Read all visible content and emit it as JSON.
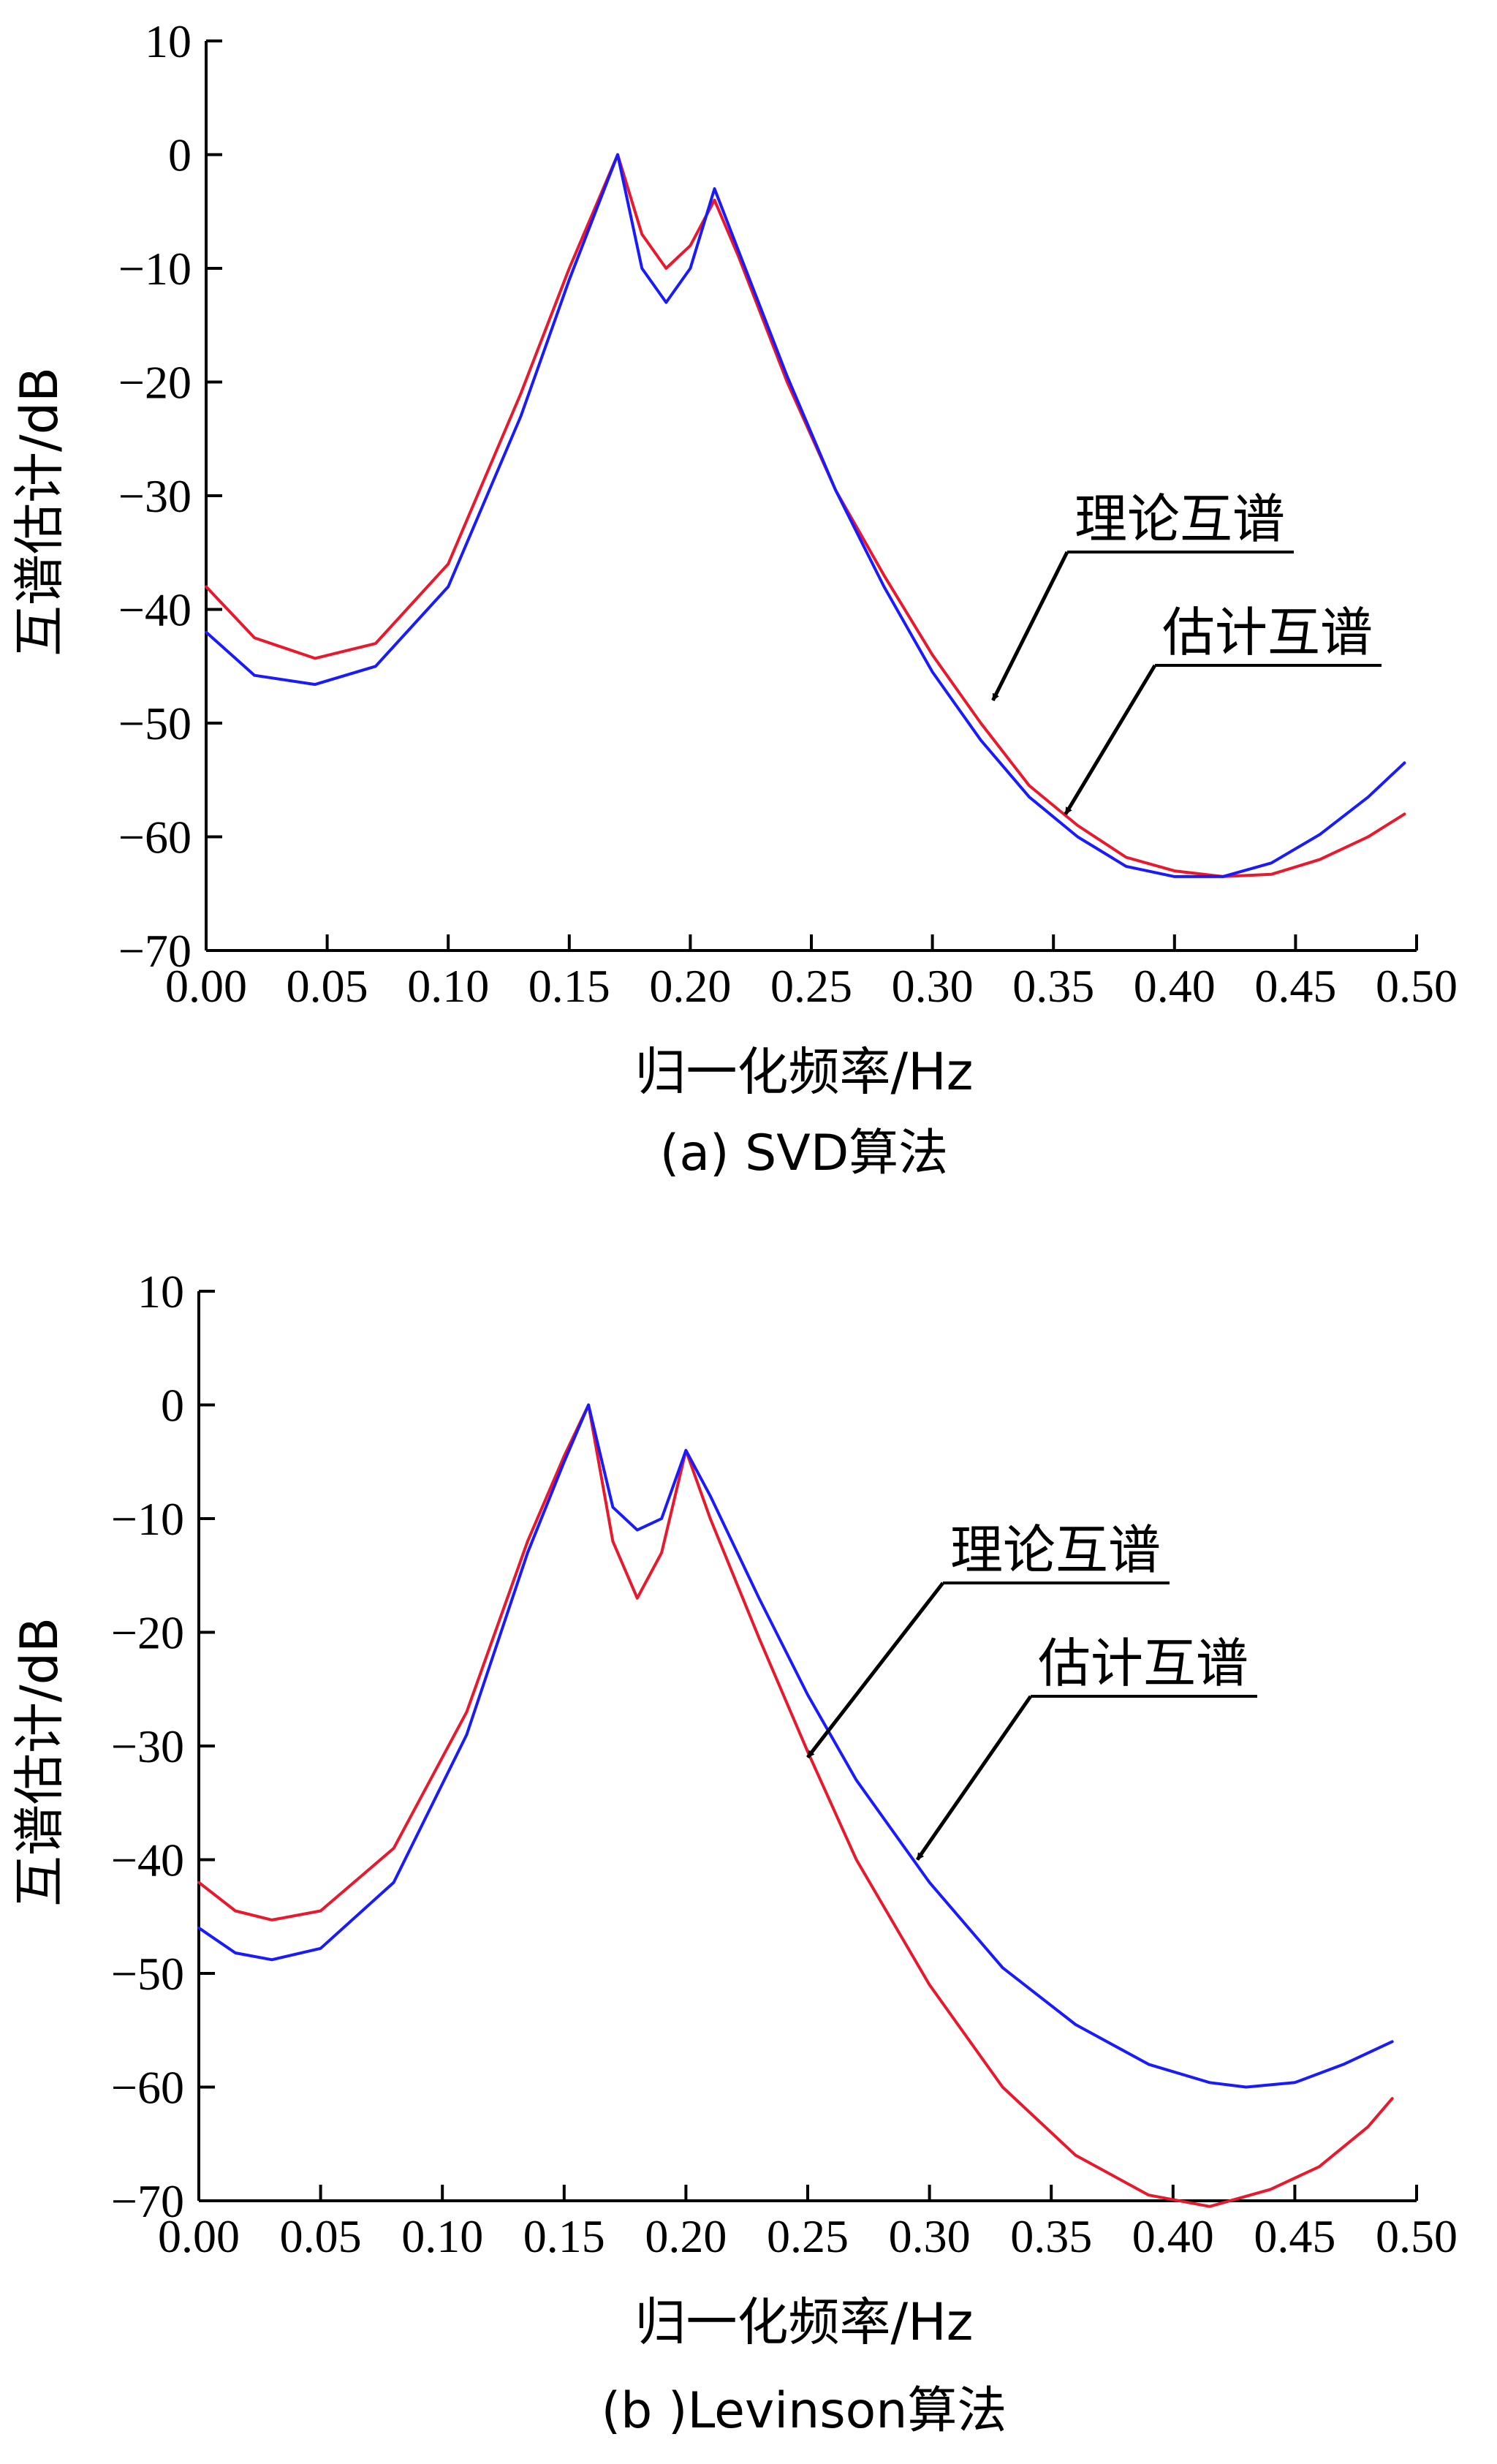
{
  "colors": {
    "theory": "#e8192c",
    "estimate": "#1a1aff",
    "axis": "#000000"
  },
  "chart_data": [
    {
      "type": "line",
      "caption": "(a) SVD算法",
      "xlabel": "归一化频率/Hz",
      "ylabel": "互谱估计/dB",
      "xlim": [
        0,
        0.5
      ],
      "ylim": [
        -70,
        10
      ],
      "xticks": [
        "0.00",
        "0.05",
        "0.10",
        "0.15",
        "0.20",
        "0.25",
        "0.30",
        "0.35",
        "0.40",
        "0.45",
        "0.50"
      ],
      "yticks": [
        "10",
        "0",
        "−10",
        "−20",
        "−30",
        "−40",
        "−50",
        "−60",
        "−70"
      ],
      "annotations": [
        {
          "text": "理论互谱",
          "target_series": "theory",
          "point": [
            0.325,
            -48
          ]
        },
        {
          "text": "估计互谱",
          "target_series": "estimate",
          "point": [
            0.355,
            -58
          ]
        }
      ],
      "series": [
        {
          "key": "theory",
          "color": "#e8192c",
          "x": [
            0.0,
            0.02,
            0.045,
            0.07,
            0.1,
            0.13,
            0.15,
            0.16,
            0.17,
            0.18,
            0.19,
            0.2,
            0.21,
            0.22,
            0.24,
            0.26,
            0.28,
            0.3,
            0.32,
            0.34,
            0.36,
            0.38,
            0.4,
            0.42,
            0.44,
            0.46,
            0.48,
            0.495
          ],
          "y": [
            -38,
            -42.5,
            -44.3,
            -43,
            -36,
            -21,
            -10,
            -5,
            0,
            -7,
            -10,
            -8,
            -4,
            -9,
            -20,
            -29.5,
            -37,
            -44,
            -50,
            -55.5,
            -59,
            -61.8,
            -63,
            -63.5,
            -63.3,
            -62,
            -60,
            -58
          ]
        },
        {
          "key": "estimate",
          "color": "#1a1aff",
          "x": [
            0.0,
            0.02,
            0.045,
            0.07,
            0.1,
            0.13,
            0.15,
            0.16,
            0.17,
            0.18,
            0.19,
            0.2,
            0.21,
            0.22,
            0.24,
            0.26,
            0.28,
            0.3,
            0.32,
            0.34,
            0.36,
            0.38,
            0.4,
            0.42,
            0.44,
            0.46,
            0.48,
            0.495
          ],
          "y": [
            -42,
            -45.8,
            -46.6,
            -45,
            -38,
            -23,
            -11,
            -5.5,
            0,
            -10,
            -13,
            -10,
            -3,
            -8.5,
            -19.5,
            -29.5,
            -38,
            -45.5,
            -51.5,
            -56.5,
            -60,
            -62.6,
            -63.5,
            -63.5,
            -62.3,
            -59.8,
            -56.5,
            -53.5
          ]
        }
      ]
    },
    {
      "type": "line",
      "caption": "(b )Levinson算法",
      "xlabel": "归一化频率/Hz",
      "ylabel": "互谱估计/dB",
      "xlim": [
        0,
        0.5
      ],
      "ylim": [
        -70,
        10
      ],
      "xticks": [
        "0.00",
        "0.05",
        "0.10",
        "0.15",
        "0.20",
        "0.25",
        "0.30",
        "0.35",
        "0.40",
        "0.45",
        "0.50"
      ],
      "yticks": [
        "10",
        "0",
        "−10",
        "−20",
        "−30",
        "−40",
        "−50",
        "−60",
        "−70"
      ],
      "annotations": [
        {
          "text": "理论互谱",
          "target_series": "theory",
          "point": [
            0.25,
            -31
          ]
        },
        {
          "text": "估计互谱",
          "target_series": "estimate",
          "point": [
            0.295,
            -40
          ]
        }
      ],
      "series": [
        {
          "key": "theory",
          "color": "#e8192c",
          "x": [
            0.0,
            0.015,
            0.03,
            0.05,
            0.08,
            0.11,
            0.135,
            0.15,
            0.16,
            0.17,
            0.18,
            0.19,
            0.2,
            0.21,
            0.23,
            0.25,
            0.27,
            0.3,
            0.33,
            0.36,
            0.39,
            0.415,
            0.44,
            0.46,
            0.48,
            0.49
          ],
          "y": [
            -42,
            -44.5,
            -45.3,
            -44.5,
            -39,
            -27,
            -12,
            -4.5,
            0,
            -12,
            -17,
            -13,
            -4,
            -10,
            -20.5,
            -30.5,
            -40,
            -51,
            -60,
            -66,
            -69.5,
            -70.5,
            -69,
            -67,
            -63.5,
            -61
          ]
        },
        {
          "key": "estimate",
          "color": "#1a1aff",
          "x": [
            0.0,
            0.015,
            0.03,
            0.05,
            0.08,
            0.11,
            0.135,
            0.15,
            0.16,
            0.17,
            0.18,
            0.19,
            0.2,
            0.21,
            0.23,
            0.25,
            0.27,
            0.3,
            0.33,
            0.36,
            0.39,
            0.415,
            0.43,
            0.45,
            0.47,
            0.49
          ],
          "y": [
            -46,
            -48.2,
            -48.8,
            -47.8,
            -42,
            -29,
            -13,
            -5,
            0,
            -9,
            -11,
            -10,
            -4,
            -8,
            -17,
            -25.5,
            -33,
            -42,
            -49.5,
            -54.5,
            -58,
            -59.6,
            -60,
            -59.6,
            -58,
            -56
          ]
        }
      ]
    }
  ]
}
